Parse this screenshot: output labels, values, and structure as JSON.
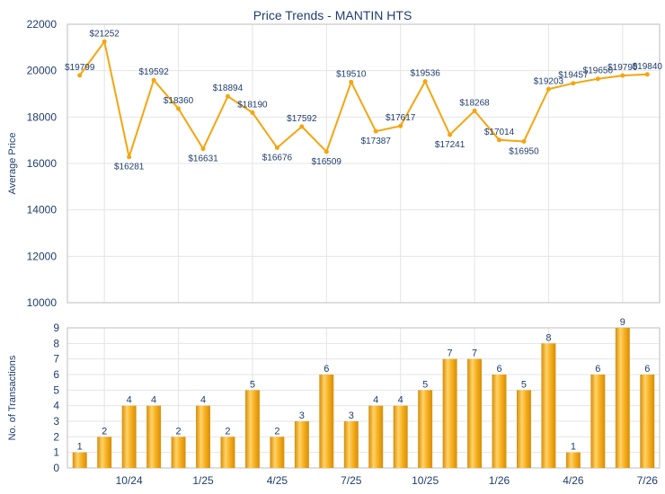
{
  "chart_data": [
    {
      "type": "line",
      "title": "Price Trends - MANTIN HTS",
      "ylabel": "Average Price",
      "ylim": [
        10000,
        22000
      ],
      "yticks": [
        "22000",
        "20000",
        "18000",
        "16000",
        "14000",
        "12000",
        "10000"
      ],
      "series": [
        {
          "values": [
            19799,
            21252,
            16281,
            19592,
            18360,
            16631,
            18894,
            18190,
            16676,
            17592,
            16509,
            19510,
            17387,
            17617,
            19536,
            17241,
            18268,
            17014,
            16950,
            19203,
            19457,
            19650,
            19790,
            19840
          ],
          "labels": [
            "$19799",
            "$21252",
            "$16281",
            "$19592",
            "$18360",
            "$16631",
            "$18894",
            "$18190",
            "$16676",
            "$17592",
            "$16509",
            "$19510",
            "$17387",
            "$17617",
            "$19536",
            "$17241",
            "$18268",
            "$17014",
            "$16950",
            "$19203",
            "$19457",
            "$19650",
            "$19790",
            "$19840"
          ]
        }
      ],
      "color": "#f5a50f",
      "grid": true
    },
    {
      "type": "bar",
      "ylabel": "No. of Transactions",
      "ylim": [
        0,
        9
      ],
      "yticks": [
        "9",
        "8",
        "7",
        "6",
        "5",
        "4",
        "3",
        "2",
        "1",
        "0"
      ],
      "xtick_labels": [
        "10/24",
        "1/25",
        "4/25",
        "7/25",
        "10/25",
        "1/26",
        "4/26",
        "7/26"
      ],
      "values": [
        1,
        2,
        4,
        4,
        2,
        4,
        2,
        5,
        2,
        3,
        6,
        3,
        4,
        4,
        5,
        7,
        7,
        6,
        5,
        8,
        1,
        6,
        9,
        6
      ],
      "value_labels": [
        "1",
        "2",
        "4",
        "4",
        "2",
        "4",
        "2",
        "5",
        "2",
        "3",
        "6",
        "3",
        "4",
        "4",
        "5",
        "7",
        "7",
        "6",
        "5",
        "8",
        "1",
        "6",
        "9",
        "6"
      ],
      "color": "#f5a50f",
      "grid": true
    }
  ]
}
